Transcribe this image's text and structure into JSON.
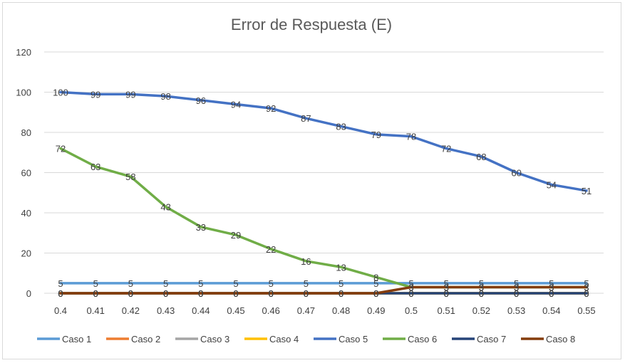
{
  "chart_data": {
    "type": "line",
    "title": "Error de Respuesta (E)",
    "xlabel": "",
    "ylabel": "",
    "x": [
      "0.4",
      "0.41",
      "0.42",
      "0.43",
      "0.44",
      "0.45",
      "0.46",
      "0.47",
      "0.48",
      "0.49",
      "0.5",
      "0.51",
      "0.52",
      "0.53",
      "0.54",
      "0.55"
    ],
    "ylim": [
      0,
      120
    ],
    "yticks": [
      0,
      20,
      40,
      60,
      80,
      100,
      120
    ],
    "grid": true,
    "legend": "bottom",
    "series": [
      {
        "name": "Caso 1",
        "color": "#5b9bd5",
        "values": [
          5,
          5,
          5,
          5,
          5,
          5,
          5,
          5,
          5,
          5,
          5,
          5,
          5,
          5,
          5,
          5
        ]
      },
      {
        "name": "Caso 2",
        "color": "#ed7d31",
        "values": [
          0,
          0,
          0,
          0,
          0,
          0,
          0,
          0,
          0,
          0,
          0,
          0,
          0,
          0,
          0,
          0
        ]
      },
      {
        "name": "Caso 3",
        "color": "#a5a5a5",
        "values": [
          0,
          0,
          0,
          0,
          0,
          0,
          0,
          0,
          0,
          0,
          0,
          0,
          0,
          0,
          0,
          0
        ]
      },
      {
        "name": "Caso 4",
        "color": "#ffc000",
        "values": [
          0,
          0,
          0,
          0,
          0,
          0,
          0,
          0,
          0,
          0,
          0,
          0,
          0,
          0,
          0,
          0
        ]
      },
      {
        "name": "Caso 5",
        "color": "#4472c4",
        "values": [
          100,
          99,
          99,
          98,
          96,
          94,
          92,
          87,
          83,
          79,
          78,
          72,
          68,
          60,
          54,
          51
        ]
      },
      {
        "name": "Caso 6",
        "color": "#70ad47",
        "values": [
          72,
          63,
          58,
          43,
          33,
          29,
          22,
          16,
          13,
          8,
          3,
          3,
          3,
          3,
          3,
          3
        ]
      },
      {
        "name": "Caso 7",
        "color": "#264478",
        "values": [
          0,
          0,
          0,
          0,
          0,
          0,
          0,
          0,
          0,
          0,
          0,
          0,
          0,
          0,
          0,
          0
        ]
      },
      {
        "name": "Caso 8",
        "color": "#843c0c",
        "values": [
          0,
          0,
          0,
          0,
          0,
          0,
          0,
          0,
          0,
          0,
          3,
          3,
          3,
          3,
          3,
          3
        ]
      }
    ]
  }
}
